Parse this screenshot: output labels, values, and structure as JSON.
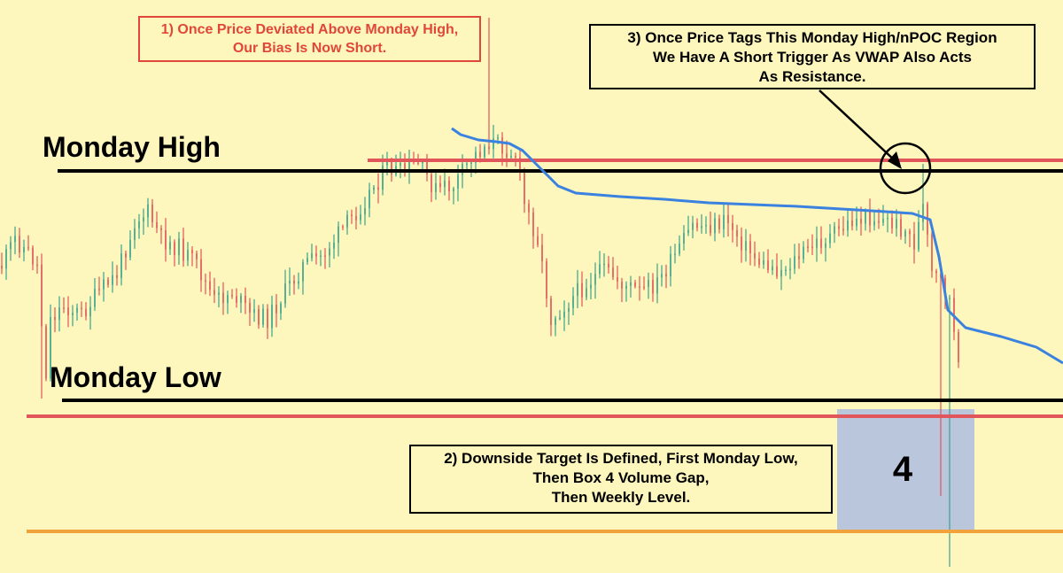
{
  "colors": {
    "background": "#fdf6bd",
    "bull_candle": "#3aa38c",
    "bear_candle": "#e0565b",
    "vwap": "#3b82e0",
    "key_level": "#000000",
    "resistance_level": "#e0565b",
    "weekly_level": "#f2a23c",
    "volume_gap_box": "#aebde0"
  },
  "labels": {
    "monday_high": "Monday High",
    "monday_low": "Monday Low",
    "box_number": "4"
  },
  "annotations": {
    "note_1": [
      "1) Once Price Deviated Above Monday High,",
      "Our Bias Is Now Short."
    ],
    "note_2": [
      "2) Downside Target Is Defined, First Monday Low,",
      "Then Box 4 Volume Gap,",
      "Then Weekly Level."
    ],
    "note_3": [
      "3) Once Price Tags This Monday High/nPOC Region",
      "We Have A Short Trigger As VWAP Also Acts",
      "As Resistance."
    ]
  },
  "chart_data": {
    "type": "candlestick",
    "title": "",
    "xlabel": "",
    "ylabel": "",
    "grid": false,
    "price_path": [
      [
        0,
        300
      ],
      [
        3,
        270
      ],
      [
        6,
        285
      ],
      [
        8,
        300
      ],
      [
        9,
        365
      ],
      [
        10,
        420
      ],
      [
        11,
        360
      ],
      [
        14,
        345
      ],
      [
        18,
        355
      ],
      [
        22,
        330
      ],
      [
        26,
        310
      ],
      [
        30,
        250
      ],
      [
        33,
        240
      ],
      [
        36,
        270
      ],
      [
        40,
        280
      ],
      [
        44,
        300
      ],
      [
        48,
        340
      ],
      [
        52,
        330
      ],
      [
        56,
        355
      ],
      [
        60,
        360
      ],
      [
        64,
        330
      ],
      [
        68,
        300
      ],
      [
        72,
        290
      ],
      [
        76,
        265
      ],
      [
        80,
        240
      ],
      [
        84,
        210
      ],
      [
        87,
        190
      ],
      [
        90,
        195
      ],
      [
        94,
        185
      ],
      [
        98,
        215
      ],
      [
        102,
        210
      ],
      [
        106,
        180
      ],
      [
        110,
        160
      ],
      [
        113,
        165
      ],
      [
        116,
        175
      ],
      [
        118,
        230
      ],
      [
        121,
        270
      ],
      [
        124,
        360
      ],
      [
        128,
        340
      ],
      [
        132,
        320
      ],
      [
        136,
        305
      ],
      [
        140,
        320
      ],
      [
        144,
        330
      ],
      [
        148,
        320
      ],
      [
        152,
        290
      ],
      [
        156,
        255
      ],
      [
        160,
        255
      ],
      [
        164,
        250
      ],
      [
        168,
        280
      ],
      [
        172,
        300
      ],
      [
        176,
        305
      ],
      [
        180,
        290
      ],
      [
        184,
        275
      ],
      [
        188,
        265
      ],
      [
        192,
        250
      ],
      [
        196,
        245
      ],
      [
        200,
        250
      ],
      [
        204,
        260
      ],
      [
        206,
        275
      ],
      [
        208,
        235
      ],
      [
        210,
        310
      ],
      [
        212,
        320
      ],
      [
        214,
        340
      ],
      [
        216,
        420
      ]
    ],
    "x_max": 240,
    "events": {
      "monday_high_deviation": {
        "x": 110,
        "high": 20
      },
      "monday_high_tag": {
        "x": 208,
        "high": 185
      },
      "monday_low_wick": {
        "x": 9,
        "low": 450
      },
      "breakdown_wicks": [
        {
          "x": 212,
          "low": 560
        },
        {
          "x": 214,
          "low": 640
        }
      ]
    },
    "vwap": [
      [
        102,
        145
      ],
      [
        104,
        152
      ],
      [
        108,
        158
      ],
      [
        112,
        160
      ],
      [
        115,
        162
      ],
      [
        118,
        170
      ],
      [
        122,
        190
      ],
      [
        126,
        210
      ],
      [
        130,
        218
      ],
      [
        140,
        222
      ],
      [
        150,
        225
      ],
      [
        160,
        229
      ],
      [
        170,
        231
      ],
      [
        180,
        233
      ],
      [
        190,
        236
      ],
      [
        200,
        239
      ],
      [
        206,
        241
      ],
      [
        210,
        248
      ],
      [
        212,
        290
      ],
      [
        214,
        350
      ],
      [
        218,
        370
      ],
      [
        226,
        380
      ],
      [
        234,
        392
      ],
      [
        240,
        410
      ]
    ],
    "levels": [
      {
        "name": "Monday High",
        "y": 193,
        "color": "#000000",
        "x_start": 7
      },
      {
        "name": "Monday High / nPOC",
        "y": 181,
        "color": "#e0565b",
        "x_start": 77
      },
      {
        "name": "Monday Low",
        "y": 452,
        "color": "#000000",
        "x_start": 8
      },
      {
        "name": "Box 4 Top",
        "y": 470,
        "color": "#e0565b",
        "x_start": 0
      },
      {
        "name": "Weekly Level",
        "y": 600,
        "color": "#f2a23c",
        "x_start": 0
      }
    ],
    "volume_gap_box": {
      "label": "4",
      "x0": 189,
      "x1": 220,
      "y0": 462,
      "y1": 600
    },
    "trigger_circle": {
      "x": 204,
      "y": 190
    }
  }
}
